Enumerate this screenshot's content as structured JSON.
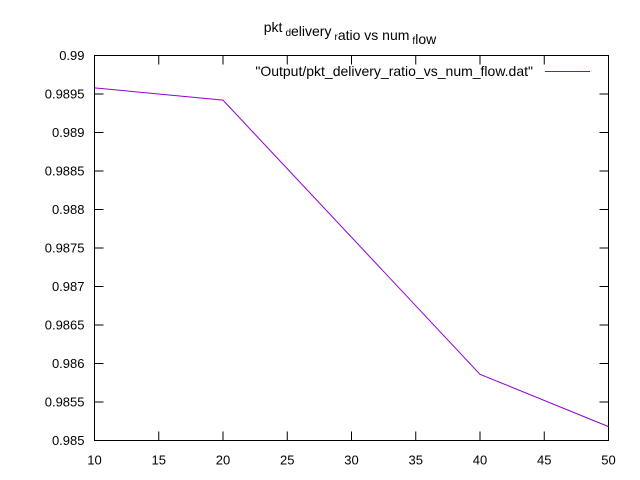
{
  "chart_data": {
    "type": "line",
    "title": {
      "parts": [
        {
          "text": "pkt",
          "sub": false
        },
        {
          "text": "d",
          "sub": true
        },
        {
          "text": "elivery",
          "sub": false
        },
        {
          "text": "r",
          "sub": true
        },
        {
          "text": "atio vs num",
          "sub": false
        },
        {
          "text": "f",
          "sub": true
        },
        {
          "text": "low",
          "sub": false
        }
      ]
    },
    "xlabel": "",
    "ylabel": "",
    "xlim": [
      10,
      50
    ],
    "ylim": [
      0.985,
      0.99
    ],
    "x_ticks": [
      10,
      15,
      20,
      25,
      30,
      35,
      40,
      45,
      50
    ],
    "y_ticks": [
      0.985,
      0.9855,
      0.986,
      0.9865,
      0.987,
      0.9875,
      0.988,
      0.9885,
      0.989,
      0.9895,
      0.99
    ],
    "x_tick_labels": [
      "10",
      "15",
      "20",
      "25",
      "30",
      "35",
      "40",
      "45",
      "50"
    ],
    "y_tick_labels": [
      "0.985",
      "0.9855",
      "0.986",
      "0.9865",
      "0.987",
      "0.9875",
      "0.988",
      "0.9885",
      "0.989",
      "0.9895",
      "0.99"
    ],
    "grid": false,
    "legend_position": "top-right",
    "series": [
      {
        "name": "\"Output/pkt_delivery_ratio_vs_num_flow.dat\"",
        "color": "#9400d3",
        "x": [
          10,
          20,
          40,
          50
        ],
        "y": [
          0.98958,
          0.98942,
          0.98586,
          0.98518
        ]
      }
    ]
  }
}
